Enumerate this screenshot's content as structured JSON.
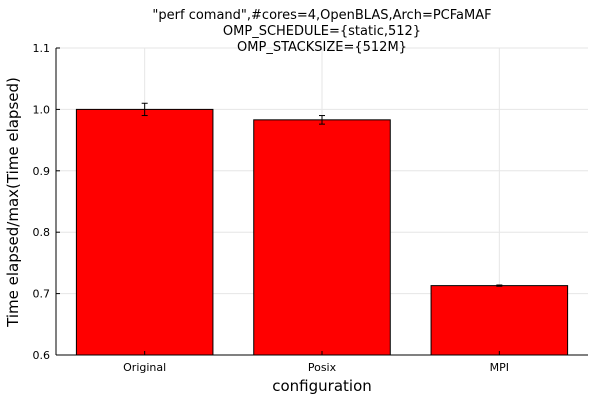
{
  "chart_data": {
    "type": "bar",
    "title_lines": [
      "\"perf comand\",#cores=4,OpenBLAS,Arch=PCFaMAF",
      "OMP_SCHEDULE={static,512}",
      "OMP_STACKSIZE={512M}"
    ],
    "xlabel": "configuration",
    "ylabel": "Time elapsed/max(Time elapsed)",
    "categories": [
      "Original",
      "Posix",
      "MPI"
    ],
    "values": [
      1.0,
      0.983,
      0.713
    ],
    "errors": [
      0.01,
      0.007,
      0.001
    ],
    "ylim": [
      0.6,
      1.1
    ],
    "yticks": [
      "0.6",
      "0.7",
      "0.8",
      "0.9",
      "1.0",
      "1.1"
    ],
    "bar_color": "#ff0000",
    "grid": true,
    "legend": "none"
  }
}
